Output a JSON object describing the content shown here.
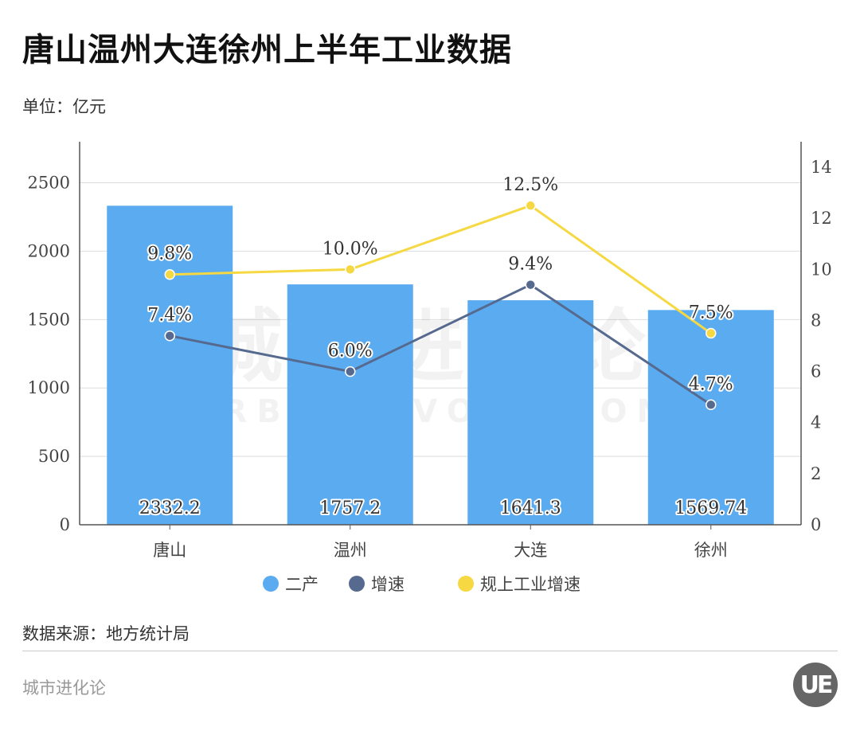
{
  "title": "唐山温州大连徐州上半年工业数据",
  "unit": "单位：亿元",
  "source": "数据来源：地方统计局",
  "footer": "城市进化论",
  "watermark": {
    "cn": "城市进化论",
    "en": "URBAN EVOLUTION"
  },
  "logo": "UE",
  "chart_data": {
    "type": "bar+line",
    "categories": [
      "唐山",
      "温州",
      "大连",
      "徐州"
    ],
    "series": [
      {
        "name": "二产",
        "type": "bar",
        "axis": "left",
        "values": [
          2332.2,
          1757.2,
          1641.3,
          1569.74
        ],
        "labels": [
          "2332.2",
          "1757.2",
          "1641.3",
          "1569.74"
        ],
        "color": "#5aabef"
      },
      {
        "name": "增速",
        "type": "line",
        "axis": "right",
        "values": [
          7.4,
          6.0,
          9.4,
          4.7
        ],
        "labels": [
          "7.4%",
          "6.0%",
          "9.4%",
          "4.7%"
        ],
        "color": "#566a8f"
      },
      {
        "name": "规上工业增速",
        "type": "line",
        "axis": "right",
        "values": [
          9.8,
          10.0,
          12.5,
          7.5
        ],
        "labels": [
          "9.8%",
          "10.0%",
          "12.5%",
          "7.5%"
        ],
        "color": "#f5d842"
      }
    ],
    "left_axis": {
      "ylim": [
        0,
        2800
      ],
      "ticks": [
        0,
        500,
        1000,
        1500,
        2000,
        2500
      ]
    },
    "right_axis": {
      "ylim": [
        0,
        15
      ],
      "ticks": [
        0,
        2,
        4,
        6,
        8,
        10,
        12,
        14
      ]
    },
    "grid": true,
    "legend": "bottom"
  }
}
